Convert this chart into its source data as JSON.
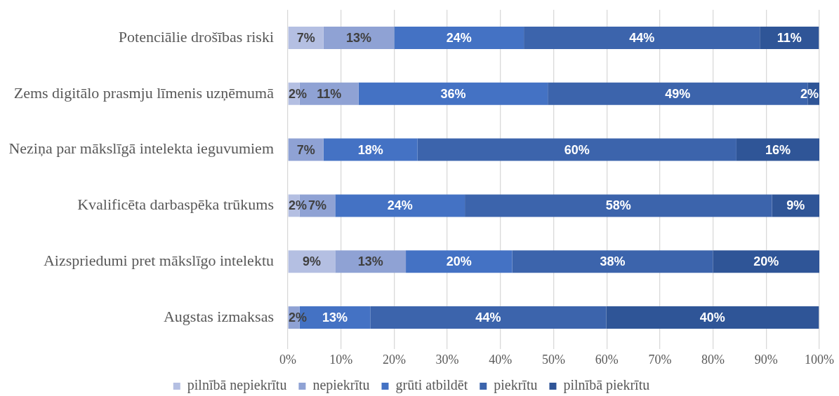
{
  "chart_data": {
    "type": "bar",
    "orientation": "horizontal",
    "stacked": true,
    "categories": [
      "Potenciālie drošības riski",
      "Zems digitālo prasmju līmenis uzņēmumā",
      "Neziņa par mākslīgā intelekta ieguvumiem",
      "Kvalificēta darbaspēka trūkums",
      "Aizspriedumi pret mākslīgo intelektu",
      "Augstas izmaksas"
    ],
    "series": [
      {
        "name": "pilnībā nepiekrītu",
        "color": "#b4bfe2",
        "values": [
          6.7,
          2.2,
          null,
          2.2,
          8.9,
          null
        ],
        "value_labels": [
          "7%",
          "2%",
          null,
          "2%",
          "9%",
          null
        ]
      },
      {
        "name": "nepiekrītu",
        "color": "#8fa2d4",
        "values": [
          13.3,
          11.1,
          6.7,
          6.7,
          13.3,
          2.2
        ],
        "value_labels": [
          "13%",
          "11%",
          "7%",
          "7%",
          "13%",
          "2%"
        ]
      },
      {
        "name": "grūti atbildēt",
        "color": "#4472c4",
        "values": [
          24.4,
          35.6,
          17.7,
          24.4,
          20,
          13.3
        ],
        "value_labels": [
          "24%",
          "36%",
          "18%",
          "24%",
          "20%",
          "13%"
        ]
      },
      {
        "name": "piekrītu",
        "color": "#3c64ac",
        "values": [
          44.4,
          48.9,
          60,
          57.8,
          37.8,
          44.4
        ],
        "value_labels": [
          "44%",
          "49%",
          "60%",
          "58%",
          "38%",
          "44%"
        ]
      },
      {
        "name": "pilnībā piekrītu",
        "color": "#2f5597",
        "values": [
          11.1,
          2.2,
          15.6,
          8.9,
          20,
          40
        ],
        "value_labels": [
          "11%",
          "2%",
          "16%",
          "9%",
          "20%",
          "40%"
        ]
      }
    ],
    "xlim": [
      0,
      100
    ],
    "xticks": [
      {
        "value": 0,
        "label": "0%"
      },
      {
        "value": 10,
        "label": "10%"
      },
      {
        "value": 20,
        "label": "20%"
      },
      {
        "value": 30,
        "label": "30%"
      },
      {
        "value": 40,
        "label": "40%"
      },
      {
        "value": 50,
        "label": "50%"
      },
      {
        "value": 60,
        "label": "60%"
      },
      {
        "value": 70,
        "label": "70%"
      },
      {
        "value": 80,
        "label": "80%"
      },
      {
        "value": 90,
        "label": "90%"
      },
      {
        "value": 100,
        "label": "100%"
      }
    ],
    "grid": "x",
    "legend": "bottom"
  }
}
